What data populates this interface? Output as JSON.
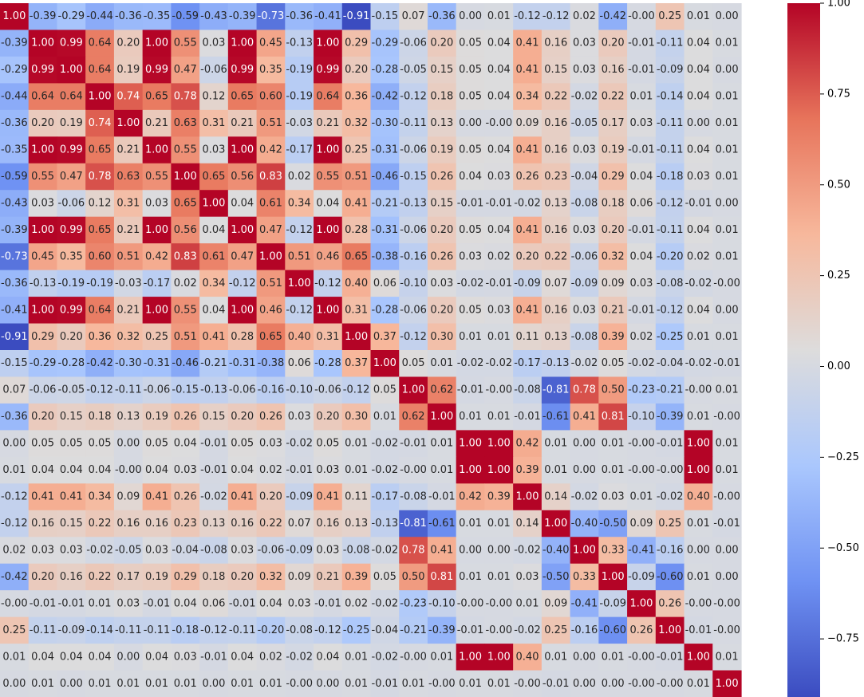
{
  "chart_data": {
    "type": "heatmap",
    "title": "",
    "xlabel": "",
    "ylabel": "",
    "annotate": true,
    "number_format": "0.00",
    "colormap": "coolwarm",
    "colormap_stops": [
      "#3b4cc0",
      "#6f92f3",
      "#aac7fd",
      "#dddcdc",
      "#f7b89c",
      "#e7745b",
      "#b40426"
    ],
    "value_range": [
      -0.91,
      1.0
    ],
    "row_labels": [],
    "column_labels": [],
    "matrix": [
      [
        1.0,
        -0.39,
        -0.29,
        -0.44,
        -0.36,
        -0.35,
        -0.59,
        -0.43,
        -0.39,
        -0.73,
        -0.36,
        -0.41,
        -0.91,
        -0.15,
        0.07,
        -0.36,
        0.0,
        0.01,
        -0.12,
        -0.12,
        0.02,
        -0.42,
        -0.0,
        0.25,
        0.01,
        0.0
      ],
      [
        -0.39,
        1.0,
        0.99,
        0.64,
        0.2,
        1.0,
        0.55,
        0.03,
        1.0,
        0.45,
        -0.13,
        1.0,
        0.29,
        -0.29,
        -0.06,
        0.2,
        0.05,
        0.04,
        0.41,
        0.16,
        0.03,
        0.2,
        -0.01,
        -0.11,
        0.04,
        0.01
      ],
      [
        -0.29,
        0.99,
        1.0,
        0.64,
        0.19,
        0.99,
        0.47,
        -0.06,
        0.99,
        0.35,
        -0.19,
        0.99,
        0.2,
        -0.28,
        -0.05,
        0.15,
        0.05,
        0.04,
        0.41,
        0.15,
        0.03,
        0.16,
        -0.01,
        -0.09,
        0.04,
        0.0
      ],
      [
        -0.44,
        0.64,
        0.64,
        1.0,
        0.74,
        0.65,
        0.78,
        0.12,
        0.65,
        0.6,
        -0.19,
        0.64,
        0.36,
        -0.42,
        -0.12,
        0.18,
        0.05,
        0.04,
        0.34,
        0.22,
        -0.02,
        0.22,
        0.01,
        -0.14,
        0.04,
        0.01
      ],
      [
        -0.36,
        0.2,
        0.19,
        0.74,
        1.0,
        0.21,
        0.63,
        0.31,
        0.21,
        0.51,
        -0.03,
        0.21,
        0.32,
        -0.3,
        -0.11,
        0.13,
        0.0,
        -0.0,
        0.09,
        0.16,
        -0.05,
        0.17,
        0.03,
        -0.11,
        0.0,
        0.01
      ],
      [
        -0.35,
        1.0,
        0.99,
        0.65,
        0.21,
        1.0,
        0.55,
        0.03,
        1.0,
        0.42,
        -0.17,
        1.0,
        0.25,
        -0.31,
        -0.06,
        0.19,
        0.05,
        0.04,
        0.41,
        0.16,
        0.03,
        0.19,
        -0.01,
        -0.11,
        0.04,
        0.01
      ],
      [
        -0.59,
        0.55,
        0.47,
        0.78,
        0.63,
        0.55,
        1.0,
        0.65,
        0.56,
        0.83,
        0.02,
        0.55,
        0.51,
        -0.46,
        -0.15,
        0.26,
        0.04,
        0.03,
        0.26,
        0.23,
        -0.04,
        0.29,
        0.04,
        -0.18,
        0.03,
        0.01
      ],
      [
        -0.43,
        0.03,
        -0.06,
        0.12,
        0.31,
        0.03,
        0.65,
        1.0,
        0.04,
        0.61,
        0.34,
        0.04,
        0.41,
        -0.21,
        -0.13,
        0.15,
        -0.01,
        -0.01,
        -0.02,
        0.13,
        -0.08,
        0.18,
        0.06,
        -0.12,
        -0.01,
        0.0
      ],
      [
        -0.39,
        1.0,
        0.99,
        0.65,
        0.21,
        1.0,
        0.56,
        0.04,
        1.0,
        0.47,
        -0.12,
        1.0,
        0.28,
        -0.31,
        -0.06,
        0.2,
        0.05,
        0.04,
        0.41,
        0.16,
        0.03,
        0.2,
        -0.01,
        -0.11,
        0.04,
        0.01
      ],
      [
        -0.73,
        0.45,
        0.35,
        0.6,
        0.51,
        0.42,
        0.83,
        0.61,
        0.47,
        1.0,
        0.51,
        0.46,
        0.65,
        -0.38,
        -0.16,
        0.26,
        0.03,
        0.02,
        0.2,
        0.22,
        -0.06,
        0.32,
        0.04,
        -0.2,
        0.02,
        0.01
      ],
      [
        -0.36,
        -0.13,
        -0.19,
        -0.19,
        -0.03,
        -0.17,
        0.02,
        0.34,
        -0.12,
        0.51,
        1.0,
        -0.12,
        0.4,
        0.06,
        -0.1,
        0.03,
        -0.02,
        -0.01,
        -0.09,
        0.07,
        -0.09,
        0.09,
        0.03,
        -0.08,
        -0.02,
        -0.0
      ],
      [
        -0.41,
        1.0,
        0.99,
        0.64,
        0.21,
        1.0,
        0.55,
        0.04,
        1.0,
        0.46,
        -0.12,
        1.0,
        0.31,
        -0.28,
        -0.06,
        0.2,
        0.05,
        0.03,
        0.41,
        0.16,
        0.03,
        0.21,
        -0.01,
        -0.12,
        0.04,
        0.0
      ],
      [
        -0.91,
        0.29,
        0.2,
        0.36,
        0.32,
        0.25,
        0.51,
        0.41,
        0.28,
        0.65,
        0.4,
        0.31,
        1.0,
        0.37,
        -0.12,
        0.3,
        0.01,
        0.01,
        0.11,
        0.13,
        -0.08,
        0.39,
        0.02,
        -0.25,
        0.01,
        0.01
      ],
      [
        -0.15,
        -0.29,
        -0.28,
        -0.42,
        -0.3,
        -0.31,
        -0.46,
        -0.21,
        -0.31,
        -0.38,
        0.06,
        -0.28,
        0.37,
        1.0,
        0.05,
        0.01,
        -0.02,
        -0.02,
        -0.17,
        -0.13,
        -0.02,
        0.05,
        -0.02,
        -0.04,
        -0.02,
        -0.01
      ],
      [
        0.07,
        -0.06,
        -0.05,
        -0.12,
        -0.11,
        -0.06,
        -0.15,
        -0.13,
        -0.06,
        -0.16,
        -0.1,
        -0.06,
        -0.12,
        0.05,
        1.0,
        0.62,
        -0.01,
        -0.0,
        -0.08,
        -0.81,
        0.78,
        0.5,
        -0.23,
        -0.21,
        -0.0,
        0.01
      ],
      [
        -0.36,
        0.2,
        0.15,
        0.18,
        0.13,
        0.19,
        0.26,
        0.15,
        0.2,
        0.26,
        0.03,
        0.2,
        0.3,
        0.01,
        0.62,
        1.0,
        0.01,
        0.01,
        -0.01,
        -0.61,
        0.41,
        0.81,
        -0.1,
        -0.39,
        0.01,
        -0.0
      ],
      [
        0.0,
        0.05,
        0.05,
        0.05,
        0.0,
        0.05,
        0.04,
        -0.01,
        0.05,
        0.03,
        -0.02,
        0.05,
        0.01,
        -0.02,
        -0.01,
        0.01,
        1.0,
        1.0,
        0.42,
        0.01,
        0.0,
        0.01,
        -0.0,
        -0.01,
        1.0,
        0.01
      ],
      [
        0.01,
        0.04,
        0.04,
        0.04,
        -0.0,
        0.04,
        0.03,
        -0.01,
        0.04,
        0.02,
        -0.01,
        0.03,
        0.01,
        -0.02,
        -0.0,
        0.01,
        1.0,
        1.0,
        0.39,
        0.01,
        0.0,
        0.01,
        -0.0,
        -0.0,
        1.0,
        0.01
      ],
      [
        -0.12,
        0.41,
        0.41,
        0.34,
        0.09,
        0.41,
        0.26,
        -0.02,
        0.41,
        0.2,
        -0.09,
        0.41,
        0.11,
        -0.17,
        -0.08,
        -0.01,
        0.42,
        0.39,
        1.0,
        0.14,
        -0.02,
        0.03,
        0.01,
        -0.02,
        0.4,
        -0.0
      ],
      [
        -0.12,
        0.16,
        0.15,
        0.22,
        0.16,
        0.16,
        0.23,
        0.13,
        0.16,
        0.22,
        0.07,
        0.16,
        0.13,
        -0.13,
        -0.81,
        -0.61,
        0.01,
        0.01,
        0.14,
        1.0,
        -0.4,
        -0.5,
        0.09,
        0.25,
        0.01,
        -0.01
      ],
      [
        0.02,
        0.03,
        0.03,
        -0.02,
        -0.05,
        0.03,
        -0.04,
        -0.08,
        0.03,
        -0.06,
        -0.09,
        0.03,
        -0.08,
        -0.02,
        0.78,
        0.41,
        0.0,
        0.0,
        -0.02,
        -0.4,
        1.0,
        0.33,
        -0.41,
        -0.16,
        0.0,
        0.0
      ],
      [
        -0.42,
        0.2,
        0.16,
        0.22,
        0.17,
        0.19,
        0.29,
        0.18,
        0.2,
        0.32,
        0.09,
        0.21,
        0.39,
        0.05,
        0.5,
        0.81,
        0.01,
        0.01,
        0.03,
        -0.5,
        0.33,
        1.0,
        -0.09,
        -0.6,
        0.01,
        0.0
      ],
      [
        -0.0,
        -0.01,
        -0.01,
        0.01,
        0.03,
        -0.01,
        0.04,
        0.06,
        -0.01,
        0.04,
        0.03,
        -0.01,
        0.02,
        -0.02,
        -0.23,
        -0.1,
        -0.0,
        -0.0,
        0.01,
        0.09,
        -0.41,
        -0.09,
        1.0,
        0.26,
        -0.0,
        -0.0
      ],
      [
        0.25,
        -0.11,
        -0.09,
        -0.14,
        -0.11,
        -0.11,
        -0.18,
        -0.12,
        -0.11,
        -0.2,
        -0.08,
        -0.12,
        -0.25,
        -0.04,
        -0.21,
        -0.39,
        -0.01,
        -0.0,
        -0.02,
        0.25,
        -0.16,
        -0.6,
        0.26,
        1.0,
        -0.01,
        -0.0
      ],
      [
        0.01,
        0.04,
        0.04,
        0.04,
        0.0,
        0.04,
        0.03,
        -0.01,
        0.04,
        0.02,
        -0.02,
        0.04,
        0.01,
        -0.02,
        -0.0,
        0.01,
        1.0,
        1.0,
        0.4,
        0.01,
        0.0,
        0.01,
        -0.0,
        -0.01,
        1.0,
        0.01
      ],
      [
        0.0,
        0.01,
        0.0,
        0.01,
        0.01,
        0.01,
        0.01,
        0.0,
        0.01,
        0.01,
        -0.0,
        0.0,
        0.01,
        -0.01,
        0.01,
        -0.0,
        0.01,
        0.01,
        -0.0,
        -0.01,
        0.0,
        0.0,
        -0.0,
        -0.0,
        0.01,
        1.0
      ]
    ],
    "colorbar": {
      "ticks": [
        1.0,
        0.75,
        0.5,
        0.25,
        0.0,
        -0.25,
        -0.5,
        -0.75
      ],
      "tick_labels": [
        "1.00",
        "0.75",
        "0.50",
        "0.25",
        "0.00",
        "−0.25",
        "−0.50",
        "−0.75"
      ]
    }
  }
}
